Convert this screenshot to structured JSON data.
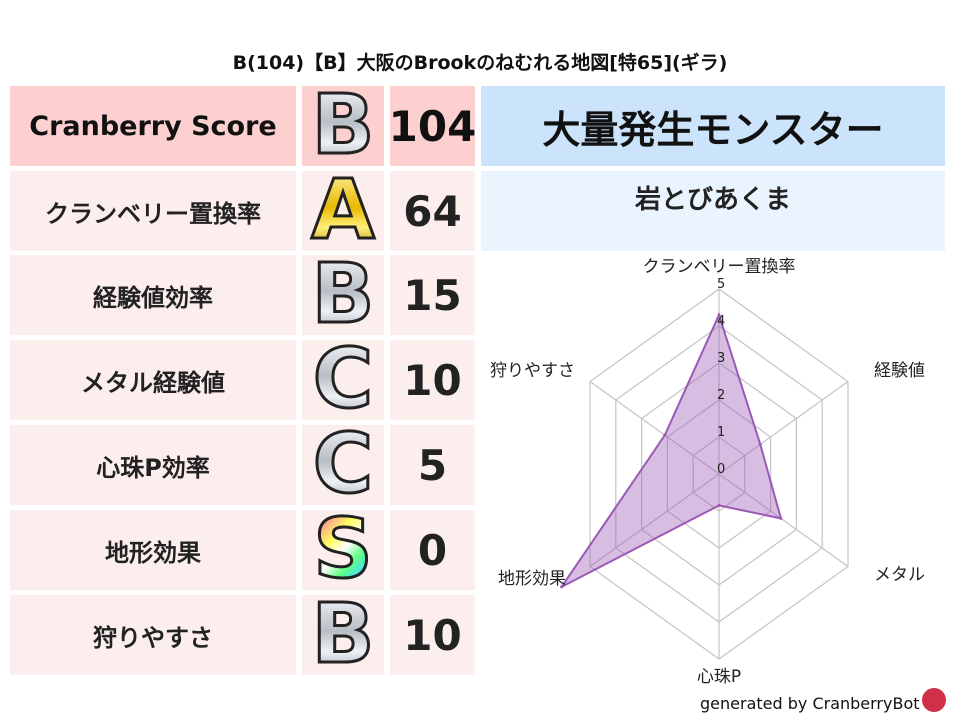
{
  "title": "B(104)【B】大阪のBrookのねむれる地図[特65](ギラ)",
  "rows": [
    {
      "label": "Cranberry Score",
      "grade": "B",
      "value": "104"
    },
    {
      "label": "クランベリー置換率",
      "grade": "A",
      "value": "64"
    },
    {
      "label": "経験値効率",
      "grade": "B",
      "value": "15"
    },
    {
      "label": "メタル経験値",
      "grade": "C",
      "value": "10"
    },
    {
      "label": "心珠P効率",
      "grade": "C",
      "value": "5"
    },
    {
      "label": "地形効果",
      "grade": "S",
      "value": "0"
    },
    {
      "label": "狩りやすさ",
      "grade": "B",
      "value": "10"
    }
  ],
  "event": {
    "heading": "大量発生モンスター",
    "monster": "岩とびあくま"
  },
  "chart_data": {
    "type": "radar",
    "axes": [
      "クランベリー置換率",
      "経験値",
      "メタル",
      "心珠P",
      "地形効果",
      "狩りやすさ"
    ],
    "values": [
      4.3,
      1.6,
      2.4,
      0.85,
      6.1,
      2.1
    ],
    "ticks": [
      "0",
      "1",
      "2",
      "3",
      "4",
      "5"
    ],
    "range": [
      0,
      5
    ],
    "fill_color": "#9b59b6",
    "grid": true
  },
  "footer": "generated by CranberryBot",
  "colors": {
    "header_row": "#fdd0d0",
    "row": "#fdeeee",
    "event_head": "#cce4fb",
    "event_body": "#eaf4fe"
  }
}
